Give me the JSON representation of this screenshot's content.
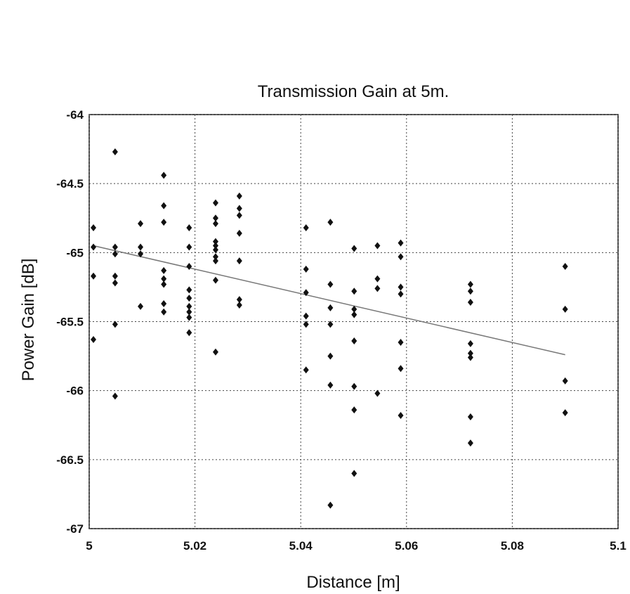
{
  "chart_data": {
    "type": "scatter",
    "title": "Transmission Gain at 5m.",
    "xlabel": "Distance [m]",
    "ylabel": "Power Gain [dB]",
    "xlim": [
      5,
      5.1
    ],
    "xticks": [
      5,
      5.02,
      5.04,
      5.06,
      5.08,
      5.1
    ],
    "ylim": [
      -67,
      -64
    ],
    "yticks": [
      -64,
      -64.5,
      -65,
      -65.5,
      -66,
      -66.5,
      -67
    ],
    "grid": true,
    "color": "#111111",
    "x": [
      5.0008,
      5.0008,
      5.0008,
      5.0008,
      5.0049,
      5.0049,
      5.0049,
      5.0049,
      5.0049,
      5.0049,
      5.0049,
      5.0097,
      5.0097,
      5.0097,
      5.0097,
      5.0141,
      5.0141,
      5.0141,
      5.0141,
      5.0141,
      5.0141,
      5.0141,
      5.0141,
      5.0189,
      5.0189,
      5.0189,
      5.0189,
      5.0189,
      5.0189,
      5.0189,
      5.0189,
      5.0189,
      5.0239,
      5.0239,
      5.0239,
      5.0239,
      5.0239,
      5.0239,
      5.0239,
      5.0239,
      5.0239,
      5.0239,
      5.0284,
      5.0284,
      5.0284,
      5.0284,
      5.0284,
      5.0284,
      5.0284,
      5.041,
      5.041,
      5.041,
      5.041,
      5.041,
      5.041,
      5.0456,
      5.0456,
      5.0456,
      5.0456,
      5.0456,
      5.0456,
      5.0456,
      5.0501,
      5.0501,
      5.0501,
      5.0501,
      5.0501,
      5.0501,
      5.0501,
      5.0501,
      5.0545,
      5.0545,
      5.0545,
      5.0545,
      5.0589,
      5.0589,
      5.0589,
      5.0589,
      5.0589,
      5.0589,
      5.0589,
      5.0721,
      5.0721,
      5.0721,
      5.0721,
      5.0721,
      5.0721,
      5.0721,
      5.0721,
      5.09,
      5.09,
      5.09,
      5.09
    ],
    "values": [
      -64.82,
      -64.96,
      -65.17,
      -65.63,
      -64.27,
      -64.96,
      -65.01,
      -65.17,
      -65.22,
      -65.52,
      -66.04,
      -64.79,
      -64.96,
      -65.01,
      -65.39,
      -64.44,
      -64.66,
      -64.78,
      -65.13,
      -65.19,
      -65.23,
      -65.37,
      -65.43,
      -64.82,
      -64.96,
      -65.1,
      -65.27,
      -65.33,
      -65.39,
      -65.43,
      -65.47,
      -65.58,
      -64.64,
      -64.75,
      -64.79,
      -64.92,
      -64.95,
      -64.98,
      -65.03,
      -65.06,
      -65.2,
      -65.72,
      -64.59,
      -64.68,
      -64.73,
      -64.86,
      -65.06,
      -65.34,
      -65.38,
      -64.82,
      -65.12,
      -65.29,
      -65.46,
      -65.52,
      -65.85,
      -64.78,
      -65.23,
      -65.4,
      -65.52,
      -65.75,
      -65.96,
      -66.83,
      -64.97,
      -65.28,
      -65.41,
      -65.45,
      -65.64,
      -65.97,
      -66.14,
      -66.6,
      -64.95,
      -65.19,
      -65.26,
      -66.02,
      -64.93,
      -65.03,
      -65.25,
      -65.3,
      -65.65,
      -65.84,
      -66.18,
      -65.23,
      -65.28,
      -65.36,
      -65.66,
      -65.73,
      -65.76,
      -66.19,
      -66.38,
      -65.1,
      -65.41,
      -65.93,
      -66.16
    ],
    "trend_line": {
      "x": [
        5.0008,
        5.09
      ],
      "values": [
        -64.95,
        -65.74
      ],
      "color": "#777777"
    }
  }
}
